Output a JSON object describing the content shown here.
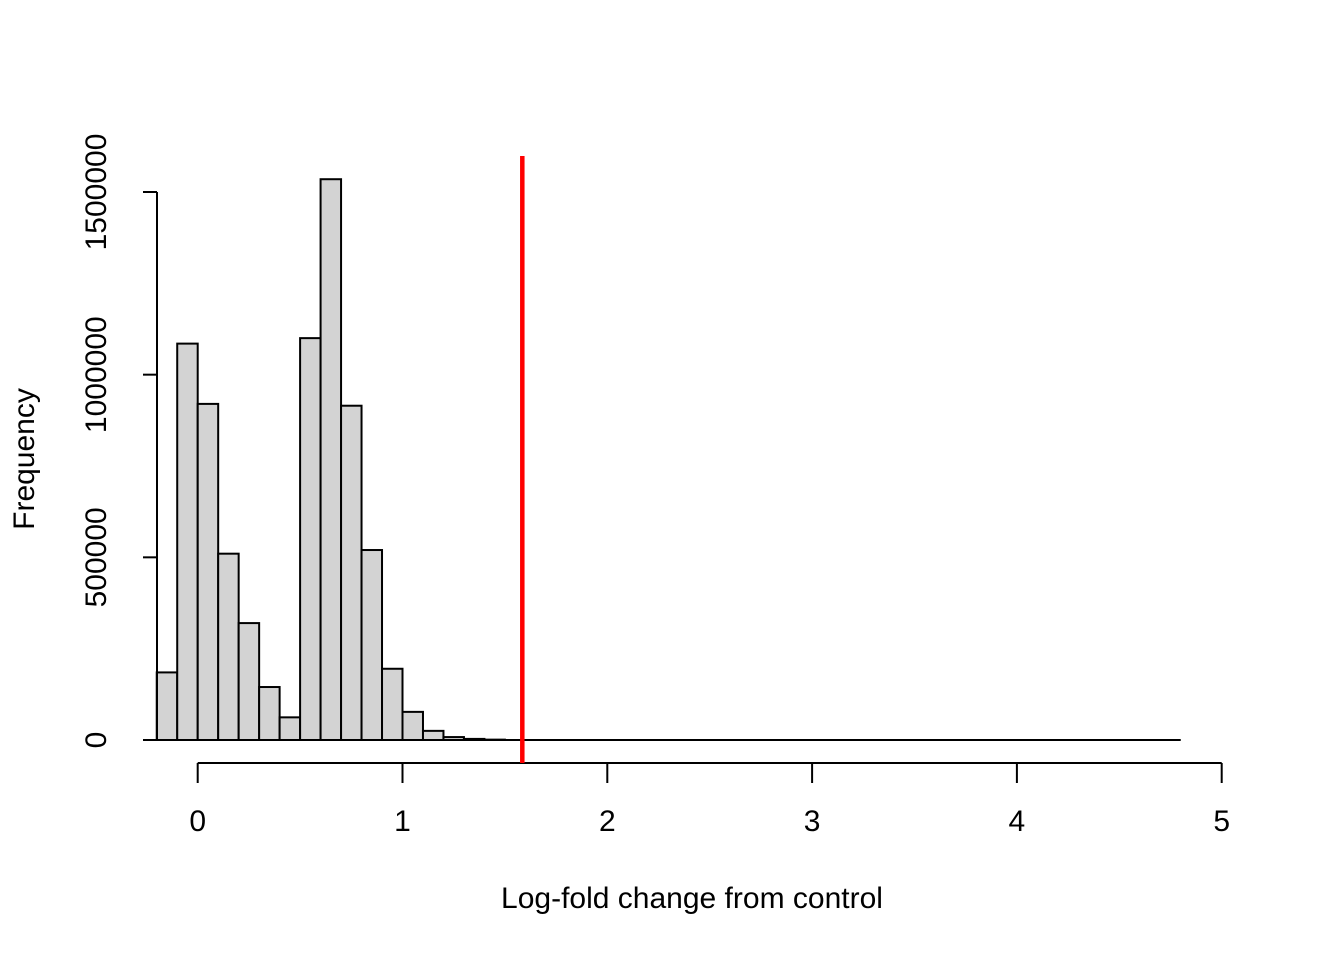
{
  "chart_data": {
    "type": "bar",
    "subtype": "histogram",
    "title": "",
    "xlabel": "Log-fold change from control",
    "ylabel": "Frequency",
    "x_ticks": [
      0,
      1,
      2,
      3,
      4,
      5
    ],
    "x_tick_labels": [
      "0",
      "1",
      "2",
      "3",
      "4",
      "5"
    ],
    "y_ticks": [
      0,
      500000,
      1000000,
      1500000
    ],
    "y_tick_labels": [
      "0",
      "500000",
      "1000000",
      "1500000"
    ],
    "xlim": [
      -0.2,
      5
    ],
    "ylim": [
      0,
      1500000
    ],
    "grid": false,
    "legend": null,
    "bin_start": -0.2,
    "bin_width": 0.1,
    "counts": [
      185000,
      1085000,
      920000,
      510000,
      320000,
      145000,
      62000,
      1100000,
      1535000,
      915000,
      520000,
      195000,
      77000,
      25000,
      8000,
      3000,
      1000
    ],
    "bins_extend_to": 4.8,
    "vline": {
      "x": 1.585,
      "color": "#FF0000"
    },
    "bar_fill": "#D3D3D3",
    "bar_border": "#000000",
    "axis_color": "#000000",
    "text_color": "#000000",
    "background": "#FFFFFF"
  }
}
